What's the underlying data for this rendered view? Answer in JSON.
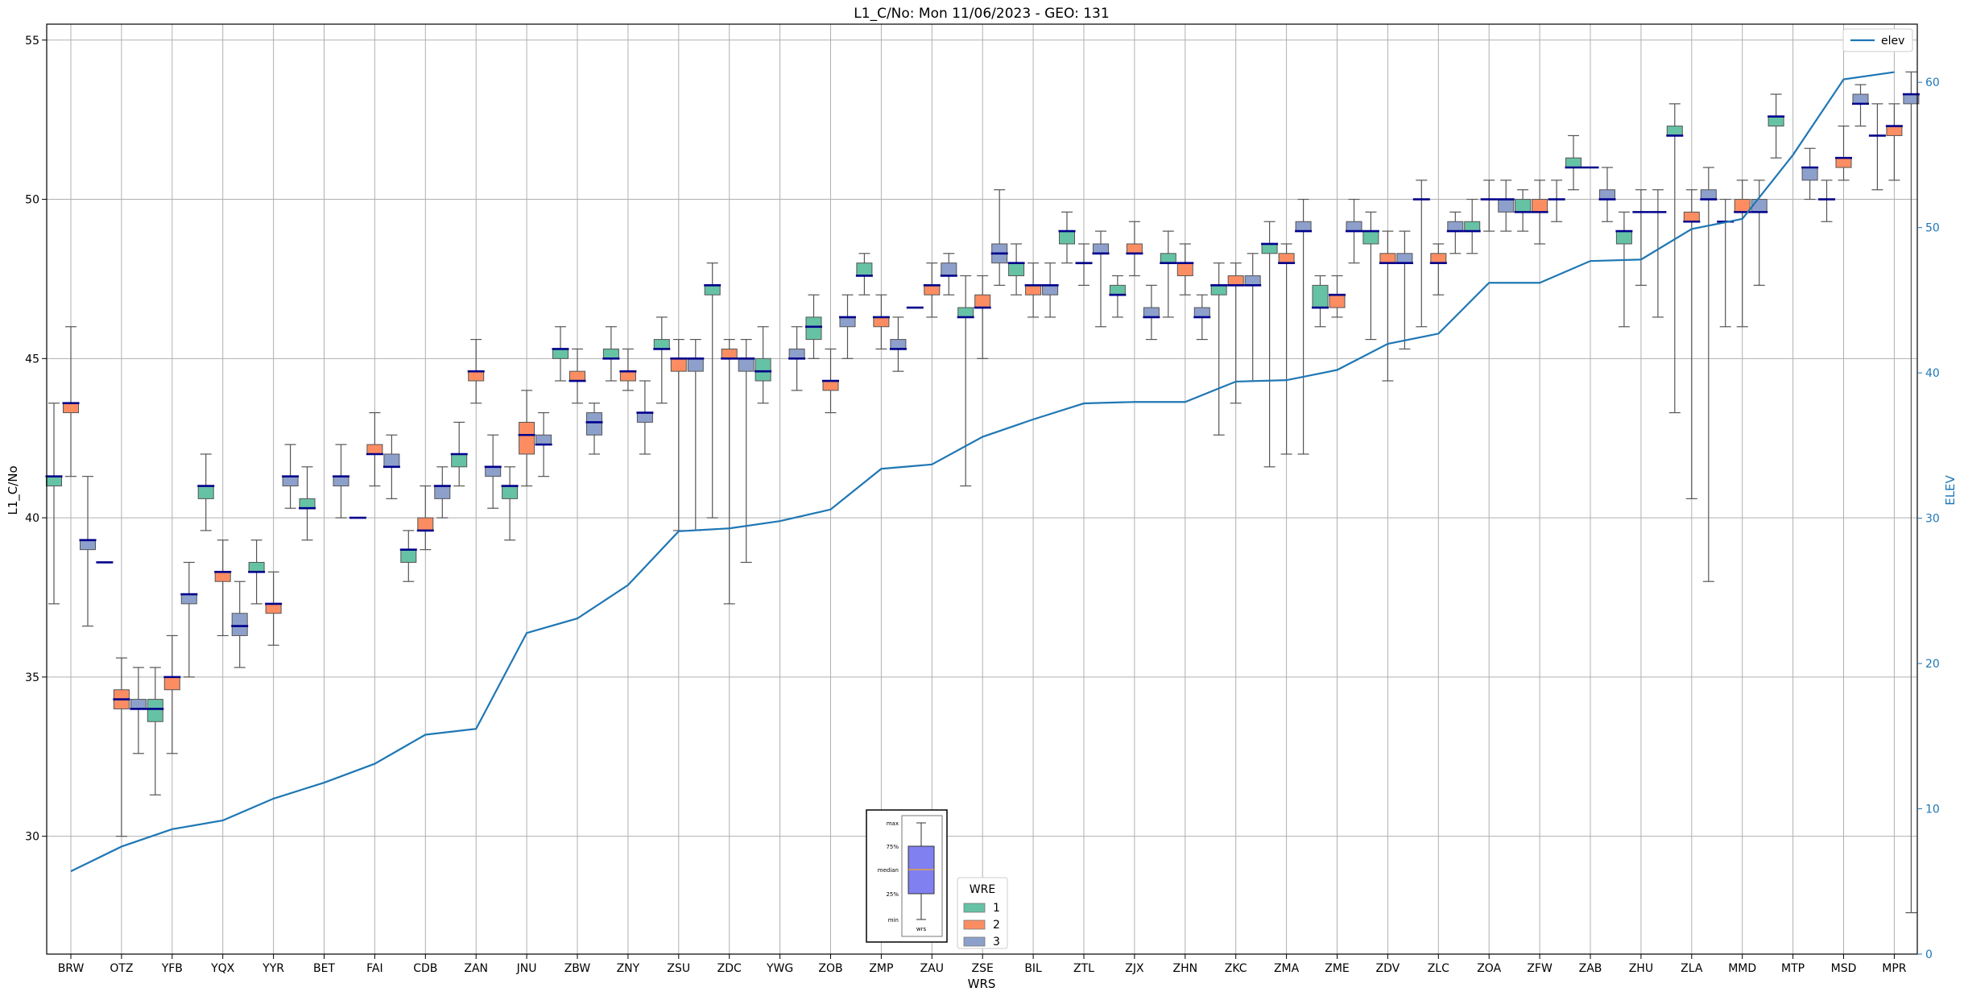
{
  "chart_data": {
    "type": "box",
    "title": "L1_C/No: Mon 11/06/2023 - GEO: 131",
    "xlabel": "WRS",
    "ylabel": "L1_C/No",
    "y2label": "ELEV",
    "ylim": [
      26.3,
      55.5
    ],
    "y2lim": [
      0,
      64
    ],
    "yticks": [
      30,
      35,
      40,
      45,
      50,
      55
    ],
    "y2ticks": [
      0,
      10,
      20,
      30,
      40,
      50,
      60
    ],
    "grid": true,
    "categories": [
      "BRW",
      "OTZ",
      "YFB",
      "YQX",
      "YYR",
      "BET",
      "FAI",
      "CDB",
      "ZAN",
      "JNU",
      "ZBW",
      "ZNY",
      "ZSU",
      "ZDC",
      "YWG",
      "ZOB",
      "ZMP",
      "ZAU",
      "ZSE",
      "BIL",
      "ZTL",
      "ZJX",
      "ZHN",
      "ZKC",
      "ZMA",
      "ZME",
      "ZDV",
      "ZLC",
      "ZOA",
      "ZFW",
      "ZAB",
      "ZHU",
      "ZLA",
      "MMD",
      "MTP",
      "MSD",
      "MPR"
    ],
    "legend": {
      "title": "WRE",
      "placement": "lower-center",
      "entries": [
        {
          "label": "1",
          "color": "#66c2a5"
        },
        {
          "label": "2",
          "color": "#fc8d62"
        },
        {
          "label": "3",
          "color": "#8da0cb"
        }
      ]
    },
    "line_legend": {
      "label": "elev",
      "placement": "top-right",
      "color": "#1f77b4"
    },
    "median_color": "#00008b",
    "inset_key_labels": [
      "max",
      "75%",
      "median",
      "25%",
      "min",
      "wrs"
    ],
    "elev": [
      5.7,
      7.4,
      8.6,
      9.2,
      10.7,
      11.8,
      13.1,
      15.1,
      15.5,
      22.1,
      23.1,
      25.4,
      29.1,
      29.3,
      29.8,
      30.6,
      33.4,
      33.7,
      35.6,
      36.8,
      37.9,
      38.0,
      38.0,
      39.4,
      39.5,
      40.2,
      42.0,
      42.7,
      46.2,
      46.2,
      47.7,
      47.8,
      49.9,
      50.6,
      55.0,
      60.2,
      60.7
    ],
    "boxes": [
      [
        [
          37.3,
          41.0,
          41.3,
          41.3,
          43.6
        ],
        [
          41.3,
          43.3,
          43.6,
          43.6,
          46.0
        ],
        [
          36.6,
          39.0,
          39.3,
          39.3,
          41.3
        ]
      ],
      [
        [
          null,
          null,
          38.6,
          null,
          null
        ],
        [
          30.0,
          34.0,
          34.3,
          34.6,
          35.6
        ],
        [
          32.6,
          34.0,
          34.0,
          34.3,
          35.3
        ]
      ],
      [
        [
          31.3,
          33.6,
          34.0,
          34.3,
          35.3
        ],
        [
          32.6,
          34.6,
          35.0,
          35.0,
          36.3
        ],
        [
          35.0,
          37.3,
          37.6,
          37.6,
          38.6
        ]
      ],
      [
        [
          39.6,
          40.6,
          41.0,
          41.0,
          42.0
        ],
        [
          36.3,
          38.0,
          38.3,
          38.3,
          39.3
        ],
        [
          35.3,
          36.3,
          36.6,
          37.0,
          38.0
        ]
      ],
      [
        [
          37.3,
          38.3,
          38.3,
          38.6,
          39.3
        ],
        [
          36.0,
          37.0,
          37.3,
          37.3,
          38.3
        ],
        [
          40.3,
          41.0,
          41.3,
          41.3,
          42.3
        ]
      ],
      [
        [
          39.3,
          40.3,
          40.3,
          40.6,
          41.6
        ],
        [
          null,
          null,
          null,
          null,
          null
        ],
        [
          40.0,
          41.0,
          41.3,
          41.3,
          42.3
        ]
      ],
      [
        [
          null,
          null,
          40.0,
          null,
          null
        ],
        [
          41.0,
          42.0,
          42.0,
          42.3,
          43.3
        ],
        [
          40.6,
          41.6,
          41.6,
          42.0,
          42.6
        ]
      ],
      [
        [
          38.0,
          38.6,
          39.0,
          39.0,
          39.6
        ],
        [
          39.0,
          39.6,
          39.6,
          40.0,
          41.0
        ],
        [
          40.0,
          40.6,
          41.0,
          41.0,
          41.6
        ]
      ],
      [
        [
          41.0,
          41.6,
          42.0,
          42.0,
          43.0
        ],
        [
          43.6,
          44.3,
          44.6,
          44.6,
          45.6
        ],
        [
          40.3,
          41.3,
          41.6,
          41.6,
          42.6
        ]
      ],
      [
        [
          39.3,
          40.6,
          41.0,
          41.0,
          41.6
        ],
        [
          41.0,
          42.0,
          42.6,
          43.0,
          44.0
        ],
        [
          41.3,
          42.3,
          42.3,
          42.6,
          43.3
        ]
      ],
      [
        [
          44.3,
          45.0,
          45.3,
          45.3,
          46.0
        ],
        [
          43.6,
          44.3,
          44.3,
          44.6,
          45.3
        ],
        [
          42.0,
          42.6,
          43.0,
          43.3,
          43.6
        ]
      ],
      [
        [
          44.3,
          45.0,
          45.0,
          45.3,
          46.0
        ],
        [
          44.0,
          44.3,
          44.6,
          44.6,
          45.3
        ],
        [
          42.0,
          43.0,
          43.3,
          43.3,
          44.3
        ]
      ],
      [
        [
          43.6,
          45.3,
          45.3,
          45.6,
          46.3
        ],
        [
          39.6,
          44.6,
          45.0,
          45.0,
          45.6
        ],
        [
          39.6,
          44.6,
          45.0,
          45.0,
          45.6
        ]
      ],
      [
        [
          40.0,
          47.0,
          47.3,
          47.3,
          48.0
        ],
        [
          37.3,
          45.0,
          45.0,
          45.3,
          45.6
        ],
        [
          38.6,
          44.6,
          45.0,
          45.0,
          45.6
        ]
      ],
      [
        [
          43.6,
          44.3,
          44.6,
          45.0,
          46.0
        ],
        [
          null,
          null,
          null,
          null,
          null
        ],
        [
          44.0,
          45.0,
          45.0,
          45.3,
          46.0
        ]
      ],
      [
        [
          45.0,
          45.6,
          46.0,
          46.3,
          47.0
        ],
        [
          43.3,
          44.0,
          44.3,
          44.3,
          45.3
        ],
        [
          45.0,
          46.0,
          46.3,
          46.3,
          47.0
        ]
      ],
      [
        [
          47.0,
          47.6,
          47.6,
          48.0,
          48.3
        ],
        [
          45.3,
          46.0,
          46.3,
          46.3,
          47.0
        ],
        [
          44.6,
          45.3,
          45.3,
          45.6,
          46.3
        ]
      ],
      [
        [
          null,
          null,
          46.6,
          null,
          null
        ],
        [
          46.3,
          47.0,
          47.3,
          47.3,
          48.0
        ],
        [
          47.0,
          47.6,
          47.6,
          48.0,
          48.3
        ]
      ],
      [
        [
          41.0,
          46.3,
          46.3,
          46.6,
          47.6
        ],
        [
          45.0,
          46.6,
          46.6,
          47.0,
          47.6
        ],
        [
          47.3,
          48.0,
          48.3,
          48.6,
          50.3
        ]
      ],
      [
        [
          47.0,
          47.6,
          48.0,
          48.0,
          48.6
        ],
        [
          46.3,
          47.0,
          47.3,
          47.3,
          48.0
        ],
        [
          46.3,
          47.0,
          47.3,
          47.3,
          48.0
        ]
      ],
      [
        [
          48.0,
          48.6,
          49.0,
          49.0,
          49.6
        ],
        [
          47.3,
          48.0,
          48.0,
          48.0,
          48.6
        ],
        [
          46.0,
          48.3,
          48.3,
          48.6,
          49.0
        ]
      ],
      [
        [
          46.3,
          47.0,
          47.0,
          47.3,
          47.6
        ],
        [
          47.6,
          48.3,
          48.3,
          48.6,
          49.3
        ],
        [
          45.6,
          46.3,
          46.3,
          46.6,
          47.3
        ]
      ],
      [
        [
          46.3,
          48.0,
          48.0,
          48.3,
          49.0
        ],
        [
          47.0,
          47.6,
          48.0,
          48.0,
          48.6
        ],
        [
          45.6,
          46.3,
          46.3,
          46.6,
          47.0
        ]
      ],
      [
        [
          42.6,
          47.0,
          47.3,
          47.3,
          48.0
        ],
        [
          43.6,
          47.3,
          47.3,
          47.6,
          48.0
        ],
        [
          44.3,
          47.3,
          47.3,
          47.6,
          48.3
        ]
      ],
      [
        [
          41.6,
          48.3,
          48.6,
          48.6,
          49.3
        ],
        [
          42.0,
          48.0,
          48.0,
          48.3,
          48.6
        ],
        [
          42.0,
          49.0,
          49.0,
          49.3,
          50.0
        ]
      ],
      [
        [
          46.0,
          46.6,
          46.6,
          47.3,
          47.6
        ],
        [
          46.3,
          46.6,
          47.0,
          47.0,
          47.6
        ],
        [
          48.0,
          49.0,
          49.0,
          49.3,
          50.0
        ]
      ],
      [
        [
          45.6,
          48.6,
          49.0,
          49.0,
          49.6
        ],
        [
          44.3,
          48.0,
          48.0,
          48.3,
          49.0
        ],
        [
          45.3,
          48.0,
          48.0,
          48.3,
          49.0
        ]
      ],
      [
        [
          46.0,
          null,
          50.0,
          null,
          50.6
        ],
        [
          47.0,
          48.0,
          48.0,
          48.3,
          48.6
        ],
        [
          48.3,
          49.0,
          49.0,
          49.3,
          49.6
        ]
      ],
      [
        [
          48.3,
          49.0,
          49.0,
          49.3,
          50.0
        ],
        [
          49.0,
          null,
          50.0,
          null,
          50.6
        ],
        [
          49.0,
          49.6,
          50.0,
          50.0,
          50.6
        ]
      ],
      [
        [
          49.0,
          49.6,
          49.6,
          50.0,
          50.3
        ],
        [
          48.6,
          49.6,
          49.6,
          50.0,
          50.6
        ],
        [
          49.3,
          null,
          50.0,
          null,
          50.6
        ]
      ],
      [
        [
          50.3,
          51.0,
          51.0,
          51.3,
          52.0
        ],
        [
          null,
          null,
          51.0,
          null,
          null
        ],
        [
          49.3,
          50.0,
          50.0,
          50.3,
          51.0
        ]
      ],
      [
        [
          46.0,
          48.6,
          49.0,
          49.0,
          49.6
        ],
        [
          47.3,
          null,
          49.6,
          null,
          50.3
        ],
        [
          46.3,
          null,
          49.6,
          null,
          50.3
        ]
      ],
      [
        [
          43.3,
          52.0,
          52.0,
          52.3,
          53.0
        ],
        [
          40.6,
          49.3,
          49.3,
          49.6,
          50.3
        ],
        [
          38.0,
          50.0,
          50.0,
          50.3,
          51.0
        ]
      ],
      [
        [
          46.0,
          null,
          49.3,
          null,
          50.0
        ],
        [
          46.0,
          49.6,
          49.6,
          50.0,
          50.6
        ],
        [
          47.3,
          49.6,
          49.6,
          50.0,
          50.6
        ]
      ],
      [
        [
          51.3,
          52.3,
          52.6,
          52.6,
          53.3
        ],
        [
          null,
          null,
          null,
          null,
          null
        ],
        [
          50.0,
          50.6,
          51.0,
          51.0,
          51.6
        ]
      ],
      [
        [
          49.3,
          null,
          50.0,
          null,
          50.6
        ],
        [
          50.6,
          51.0,
          51.3,
          51.3,
          52.3
        ],
        [
          52.3,
          53.0,
          53.0,
          53.3,
          53.6
        ]
      ],
      [
        [
          50.3,
          null,
          52.0,
          null,
          53.0
        ],
        [
          50.6,
          52.0,
          52.3,
          52.3,
          53.0
        ],
        [
          27.6,
          53.0,
          53.3,
          53.3,
          54.0
        ]
      ]
    ]
  }
}
